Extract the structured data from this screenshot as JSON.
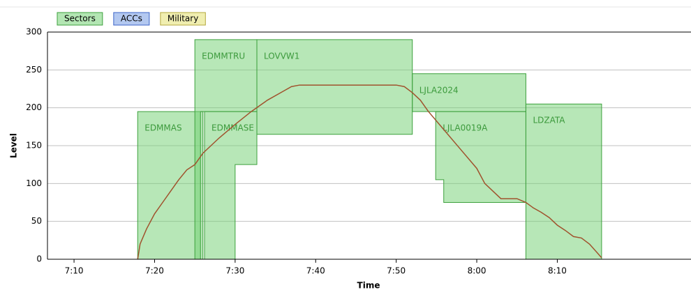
{
  "chart_data": {
    "type": "sector-profile",
    "xlabel": "Time",
    "ylabel": "Level",
    "legend": [
      {
        "name": "Sectors",
        "color": "#b3e6b3",
        "stroke": "#3ca03c"
      },
      {
        "name": "ACCs",
        "color": "#b3c8f0",
        "stroke": "#3c64c8"
      },
      {
        "name": "Military",
        "color": "#f0eeb0",
        "stroke": "#b4a83c"
      }
    ],
    "xlim": [
      426.7,
      506.6
    ],
    "xticks": [
      {
        "value": 430,
        "label": "7:10"
      },
      {
        "value": 440,
        "label": "7:20"
      },
      {
        "value": 450,
        "label": "7:30"
      },
      {
        "value": 460,
        "label": "7:40"
      },
      {
        "value": 470,
        "label": "7:50"
      },
      {
        "value": 480,
        "label": "8:00"
      },
      {
        "value": 490,
        "label": "8:10"
      }
    ],
    "ylim": [
      0,
      300
    ],
    "yticks": [
      0,
      50,
      100,
      150,
      200,
      250,
      300
    ],
    "grid": true,
    "sector_color": "#6fcf6f",
    "sectors": [
      {
        "name": "EDMMAS",
        "x": [
          437.9,
          437.9,
          446.0,
          446.0
        ],
        "values": [
          0,
          195,
          195,
          0
        ]
      },
      {
        "name": "EDMMTRU",
        "x": [
          445.0,
          445.0,
          452.7,
          452.7,
          445.7,
          445.7
        ],
        "values": [
          0,
          290,
          290,
          195,
          195,
          0
        ]
      },
      {
        "name": "EDMMASE",
        "x": [
          446.2,
          446.2,
          452.7,
          452.7,
          450.0,
          450.0
        ],
        "values": [
          0,
          195,
          195,
          125,
          125,
          0
        ]
      },
      {
        "name": "LOVVW1",
        "x": [
          452.7,
          452.7,
          472.0,
          472.0
        ],
        "values": [
          165,
          290,
          290,
          165
        ]
      },
      {
        "name": "LJLA2024",
        "x": [
          472.0,
          472.0,
          486.1,
          486.1
        ],
        "values": [
          195,
          245,
          245,
          195
        ]
      },
      {
        "name": "LJLA0019A",
        "x": [
          474.9,
          474.9,
          486.1,
          486.1,
          475.9,
          475.9
        ],
        "values": [
          105,
          195,
          195,
          75,
          75,
          105
        ]
      },
      {
        "name": "LDZATA",
        "x": [
          486.1,
          486.1,
          495.5,
          495.5
        ],
        "values": [
          0,
          205,
          205,
          0
        ]
      }
    ],
    "profile": {
      "color": "#a0522d",
      "x": [
        437.9,
        438.2,
        439,
        440,
        441,
        442,
        443,
        444,
        445,
        446,
        448,
        450,
        452,
        454,
        456,
        457,
        458,
        470,
        471,
        472,
        473,
        474,
        476,
        478,
        480,
        481,
        482,
        483,
        485,
        486.1,
        487,
        488,
        489,
        490,
        491,
        492,
        493,
        494,
        495,
        495.5
      ],
      "values": [
        0,
        20,
        40,
        60,
        75,
        90,
        105,
        118,
        125,
        140,
        160,
        178,
        195,
        210,
        222,
        228,
        230,
        230,
        228,
        220,
        210,
        195,
        170,
        145,
        120,
        100,
        90,
        80,
        80,
        75,
        68,
        62,
        55,
        45,
        38,
        30,
        28,
        20,
        8,
        2
      ]
    }
  }
}
